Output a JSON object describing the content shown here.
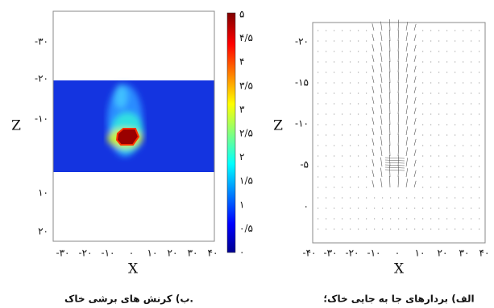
{
  "left_panel": {
    "caption": "ب) کرنش های برشی خاک.",
    "x_label": "X",
    "y_label": "Z",
    "x_ticks": [
      "-۳۰",
      "-۲۰",
      "-۱۰",
      "۰",
      "۱۰",
      "۲۰",
      "۳۰",
      "۴۰"
    ],
    "y_ticks": [
      "-۳۰",
      "-۲۰",
      "-۱۰",
      "۱۰",
      "۲۰"
    ],
    "colorbar_ticks": [
      "۵",
      "۴/۵",
      "۴",
      "۳/۵",
      "۳",
      "۲/۵",
      "۲",
      "۱/۵",
      "۱",
      "۰/۵",
      "۰"
    ]
  },
  "right_panel": {
    "caption": "الف) بردارهای جا به جایی خاک؛",
    "x_label": "X",
    "y_label": "Z",
    "x_ticks": [
      "-۴۰",
      "-۳۰",
      "-۲۰",
      "-۱۰",
      "۰",
      "۱۰",
      "۲۰",
      "۳۰",
      "۴۰"
    ],
    "y_ticks": [
      "-۲۰",
      "-۱۵",
      "-۱۰",
      "-۵",
      "۰"
    ]
  }
}
